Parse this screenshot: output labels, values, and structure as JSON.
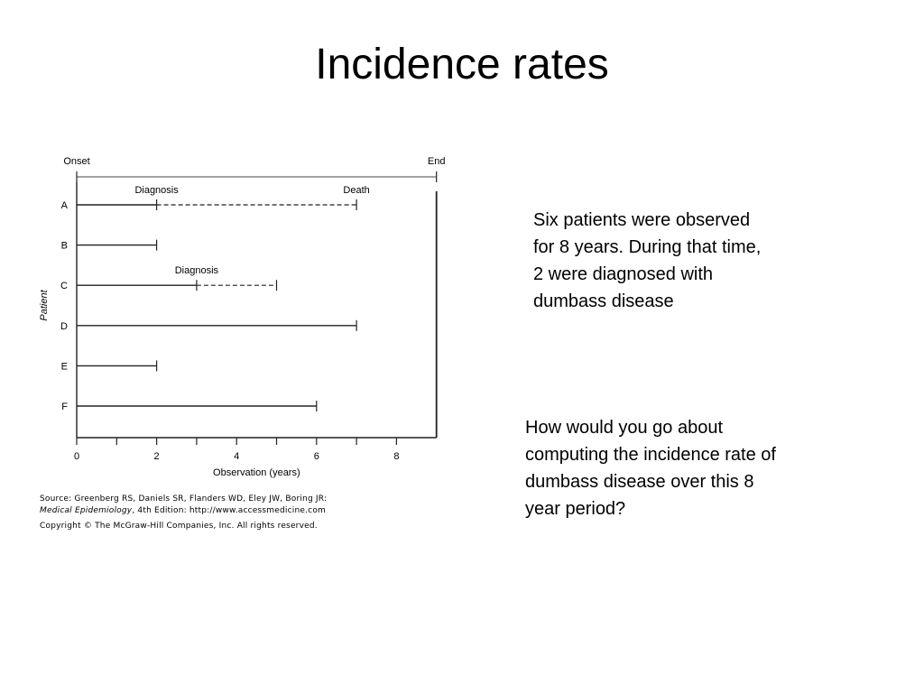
{
  "slide": {
    "title": "Incidence rates",
    "paragraph_1": "Six patients were observed for 8 years. During that time, 2 were diagnosed with dumbass disease",
    "paragraph_2": "How would you go about computing the incidence rate of dumbass disease over this 8 year period?"
  },
  "source": {
    "line1": "Source: Greenberg RS, Daniels SR, Flanders WD, Eley JW, Boring JR:",
    "line2_italic": "Medical Epidemiology",
    "line2_rest": ", 4th Edition: http://www.accessmedicine.com",
    "line3": "Copyright © The McGraw-Hill Companies, Inc. All rights reserved."
  },
  "chart_data": {
    "type": "timeline",
    "xlabel": "Observation (years)",
    "ylabel": "Patient",
    "xlim": [
      0,
      9
    ],
    "xticks": [
      0,
      2,
      4,
      6,
      8
    ],
    "minor_ticks": [
      1,
      3,
      5,
      7
    ],
    "top_axis": {
      "start_label": "Onset",
      "end_label": "End",
      "start": 0,
      "end": 9
    },
    "patients": [
      {
        "id": "A",
        "solid_end": 2,
        "dashed_end": 7,
        "events": [
          {
            "x": 2,
            "label": "Diagnosis"
          },
          {
            "x": 7,
            "label": "Death"
          }
        ]
      },
      {
        "id": "B",
        "solid_end": 2
      },
      {
        "id": "C",
        "solid_end": 3,
        "dashed_end": 5,
        "events": [
          {
            "x": 3,
            "label": "Diagnosis"
          }
        ]
      },
      {
        "id": "D",
        "solid_end": 7
      },
      {
        "id": "E",
        "solid_end": 2
      },
      {
        "id": "F",
        "solid_end": 6
      }
    ]
  }
}
